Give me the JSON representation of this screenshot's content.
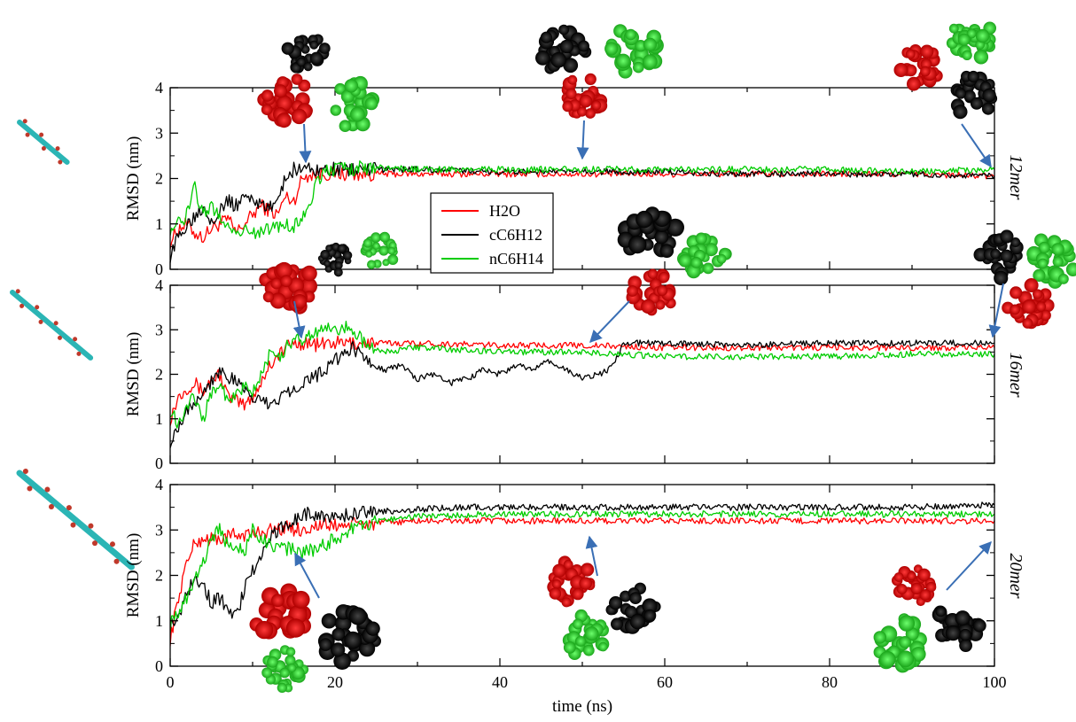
{
  "chart_data": [
    {
      "type": "line",
      "panel_label": "12mer",
      "ylabel": "RMSD (nm)",
      "xlim": [
        0,
        100
      ],
      "ylim": [
        0,
        4
      ],
      "yticks": [
        "0",
        "1",
        "2",
        "3",
        "4"
      ],
      "legend": {
        "position": "inside-left",
        "entries": [
          "H2O",
          "cC6H12",
          "nC6H14"
        ]
      },
      "series": [
        {
          "name": "H2O",
          "color": "#ff0000",
          "x": [
            0,
            1,
            2,
            3,
            4,
            5,
            6,
            7,
            8,
            9,
            10,
            11,
            12,
            13,
            14,
            15,
            16,
            17,
            18,
            19,
            20,
            25,
            30,
            40,
            50,
            60,
            70,
            80,
            90,
            100
          ],
          "y": [
            0.6,
            0.9,
            1.0,
            0.8,
            0.7,
            0.9,
            1.0,
            1.1,
            0.8,
            1.0,
            1.2,
            1.4,
            1.3,
            1.2,
            1.6,
            1.5,
            2.0,
            2.1,
            2.1,
            2.1,
            2.1,
            2.1,
            2.1,
            2.1,
            2.1,
            2.1,
            2.1,
            2.1,
            2.1,
            2.05
          ]
        },
        {
          "name": "cC6H12",
          "color": "#000000",
          "x": [
            0,
            1,
            2,
            3,
            4,
            5,
            6,
            7,
            8,
            9,
            10,
            11,
            12,
            13,
            14,
            15,
            16,
            17,
            18,
            19,
            20,
            25,
            30,
            40,
            50,
            60,
            70,
            80,
            90,
            100
          ],
          "y": [
            0.3,
            0.7,
            1.0,
            1.2,
            1.4,
            1.1,
            1.3,
            1.5,
            1.4,
            1.6,
            1.6,
            1.4,
            1.3,
            1.6,
            2.0,
            2.2,
            2.25,
            2.2,
            2.2,
            2.2,
            2.2,
            2.2,
            2.2,
            2.15,
            2.15,
            2.15,
            2.1,
            2.1,
            2.1,
            2.05
          ]
        },
        {
          "name": "nC6H14",
          "color": "#00cc00",
          "x": [
            0,
            1,
            2,
            3,
            4,
            5,
            6,
            7,
            8,
            9,
            10,
            11,
            12,
            13,
            14,
            15,
            16,
            17,
            18,
            19,
            20,
            25,
            30,
            40,
            50,
            60,
            70,
            80,
            90,
            100
          ],
          "y": [
            0.9,
            1.0,
            1.2,
            1.8,
            1.2,
            1.4,
            1.1,
            1.0,
            0.8,
            0.9,
            0.8,
            0.8,
            0.9,
            0.9,
            1.0,
            0.9,
            1.2,
            1.5,
            2.0,
            2.2,
            2.2,
            2.25,
            2.2,
            2.2,
            2.2,
            2.2,
            2.2,
            2.2,
            2.15,
            2.2
          ]
        }
      ]
    },
    {
      "type": "line",
      "panel_label": "16mer",
      "ylabel": "RMSD (nm)",
      "xlim": [
        0,
        100
      ],
      "ylim": [
        0,
        4
      ],
      "yticks": [
        "0",
        "1",
        "2",
        "3",
        "4"
      ],
      "series": [
        {
          "name": "H2O",
          "color": "#ff0000",
          "x": [
            0,
            1,
            2,
            3,
            4,
            5,
            6,
            7,
            8,
            9,
            10,
            11,
            12,
            13,
            14,
            15,
            16,
            17,
            18,
            19,
            20,
            25,
            30,
            40,
            50,
            60,
            70,
            80,
            90,
            100
          ],
          "y": [
            1.0,
            1.5,
            1.7,
            1.8,
            1.6,
            1.9,
            2.0,
            1.5,
            1.4,
            1.3,
            1.5,
            1.8,
            2.2,
            2.4,
            2.6,
            2.7,
            2.7,
            2.7,
            2.65,
            2.7,
            2.7,
            2.7,
            2.7,
            2.65,
            2.65,
            2.6,
            2.6,
            2.6,
            2.6,
            2.6
          ]
        },
        {
          "name": "cC6H12",
          "color": "#000000",
          "x": [
            0,
            2,
            4,
            6,
            8,
            10,
            12,
            14,
            16,
            18,
            20,
            22,
            24,
            26,
            28,
            30,
            32,
            34,
            36,
            38,
            40,
            42,
            44,
            46,
            48,
            50,
            52,
            53,
            54,
            55,
            56,
            60,
            70,
            80,
            90,
            100
          ],
          "y": [
            0.5,
            1.2,
            1.6,
            2.1,
            1.8,
            1.5,
            1.3,
            1.6,
            1.8,
            2.0,
            2.3,
            2.6,
            2.3,
            2.1,
            2.2,
            1.9,
            2.0,
            1.8,
            1.9,
            2.1,
            2.0,
            2.2,
            2.1,
            2.3,
            2.1,
            1.9,
            2.0,
            2.1,
            2.3,
            2.7,
            2.7,
            2.7,
            2.65,
            2.7,
            2.7,
            2.7
          ]
        },
        {
          "name": "nC6H14",
          "color": "#00cc00",
          "x": [
            0,
            1,
            2,
            3,
            4,
            5,
            6,
            7,
            8,
            9,
            10,
            11,
            12,
            13,
            14,
            15,
            16,
            17,
            18,
            19,
            20,
            22,
            24,
            26,
            30,
            40,
            50,
            60,
            70,
            80,
            90,
            100
          ],
          "y": [
            1.2,
            0.9,
            1.3,
            1.5,
            1.0,
            1.6,
            1.8,
            1.4,
            1.5,
            1.7,
            1.6,
            2.0,
            2.4,
            2.3,
            2.6,
            2.7,
            2.8,
            2.9,
            3.0,
            3.0,
            3.0,
            3.05,
            2.6,
            2.5,
            2.6,
            2.5,
            2.5,
            2.4,
            2.4,
            2.4,
            2.45,
            2.45
          ]
        }
      ]
    },
    {
      "type": "line",
      "panel_label": "20mer",
      "ylabel": "RMSD (nm)",
      "xlabel": "time (ns)",
      "xlim": [
        0,
        100
      ],
      "ylim": [
        0,
        4
      ],
      "xticks": [
        "0",
        "20",
        "40",
        "60",
        "80",
        "100"
      ],
      "yticks": [
        "0",
        "1",
        "2",
        "3",
        "4"
      ],
      "series": [
        {
          "name": "H2O",
          "color": "#ff0000",
          "x": [
            0,
            1,
            2,
            3,
            4,
            5,
            6,
            8,
            10,
            12,
            14,
            16,
            18,
            20,
            25,
            30,
            40,
            50,
            60,
            70,
            80,
            90,
            100
          ],
          "y": [
            0.6,
            1.5,
            2.3,
            2.7,
            2.8,
            2.8,
            2.8,
            2.9,
            2.9,
            3.0,
            3.05,
            3.0,
            3.1,
            3.1,
            3.15,
            3.2,
            3.2,
            3.2,
            3.2,
            3.2,
            3.2,
            3.2,
            3.2
          ]
        },
        {
          "name": "cC6H12",
          "color": "#000000",
          "x": [
            0,
            1,
            2,
            3,
            4,
            5,
            6,
            7,
            8,
            9,
            10,
            11,
            12,
            13,
            14,
            15,
            16,
            17,
            18,
            20,
            22,
            25,
            30,
            35,
            40,
            50,
            60,
            70,
            80,
            90,
            100
          ],
          "y": [
            0.9,
            1.1,
            1.6,
            2.0,
            1.8,
            1.4,
            1.5,
            1.3,
            1.1,
            1.7,
            2.1,
            2.4,
            2.8,
            3.0,
            3.1,
            3.2,
            3.3,
            3.4,
            3.3,
            3.3,
            3.35,
            3.4,
            3.45,
            3.5,
            3.5,
            3.5,
            3.5,
            3.5,
            3.5,
            3.5,
            3.55
          ]
        },
        {
          "name": "nC6H14",
          "color": "#00cc00",
          "x": [
            0,
            1,
            2,
            3,
            4,
            5,
            6,
            7,
            8,
            9,
            10,
            12,
            14,
            16,
            18,
            20,
            22,
            25,
            30,
            40,
            50,
            60,
            70,
            80,
            90,
            100
          ],
          "y": [
            0.9,
            1.2,
            1.5,
            2.0,
            2.3,
            2.8,
            3.1,
            2.6,
            2.7,
            2.5,
            3.0,
            2.7,
            2.6,
            2.5,
            2.6,
            2.8,
            3.0,
            3.2,
            3.3,
            3.35,
            3.35,
            3.35,
            3.35,
            3.35,
            3.35,
            3.35
          ]
        }
      ]
    }
  ]
}
